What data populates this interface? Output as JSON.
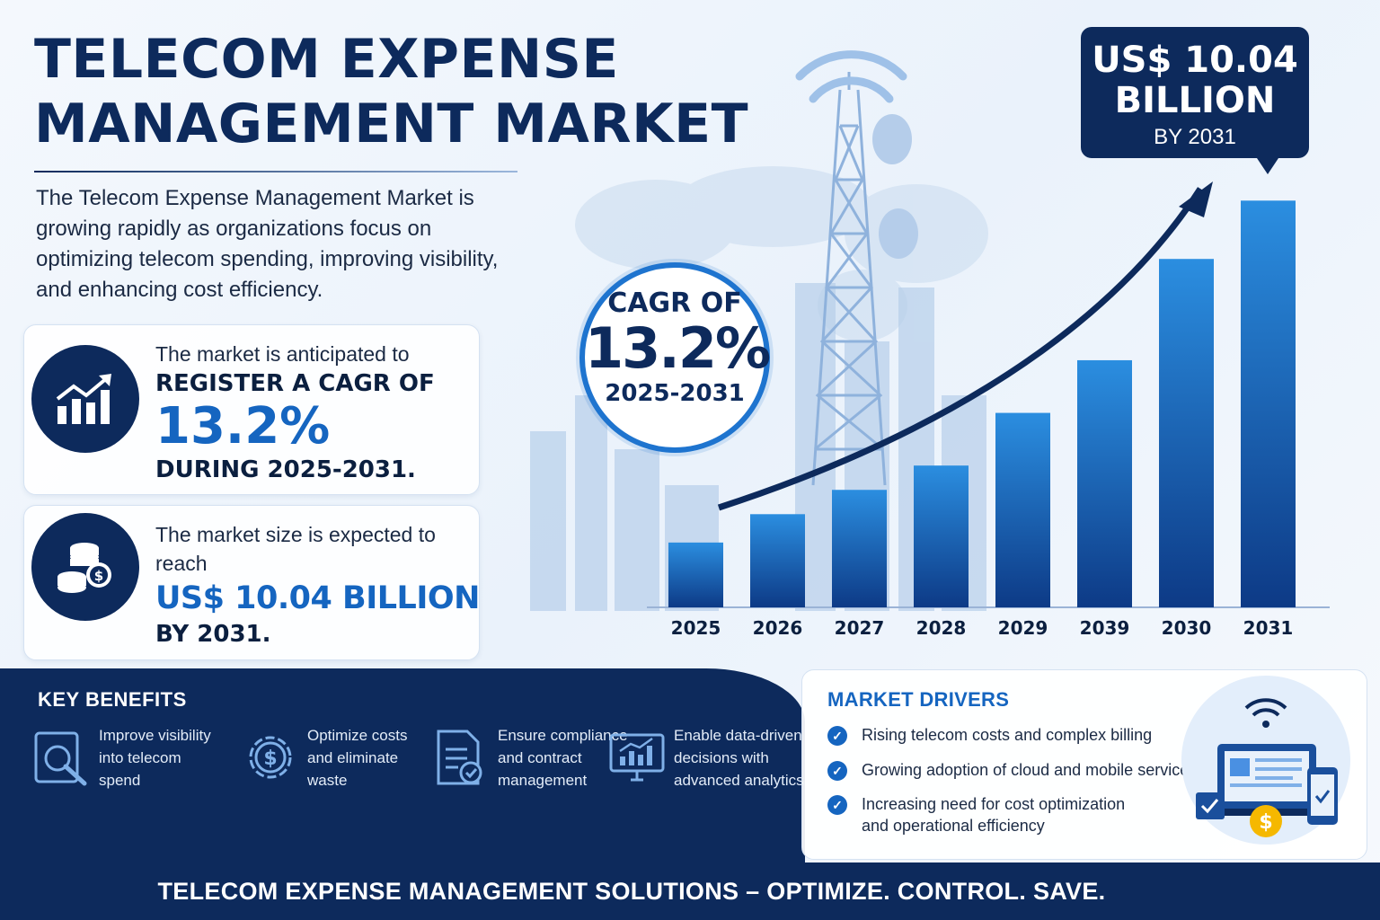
{
  "header": {
    "title_line1": "TELECOM EXPENSE",
    "title_line2": "MANAGEMENT MARKET",
    "intro": "The Telecom Expense Management Market is growing rapidly as organizations focus on optimizing telecom spending, improving visibility, and enhancing cost efficiency."
  },
  "stats": {
    "cagr_card": {
      "icon": "growth-chart-icon",
      "line1": "The market is anticipated to",
      "line2": "REGISTER A CAGR OF",
      "value": "13.2%",
      "line3": "DURING 2025-2031."
    },
    "size_card": {
      "icon": "coins-icon",
      "line1": "The market size is expected to reach",
      "value": "US$ 10.04 BILLION",
      "line2": "BY 2031."
    }
  },
  "cagr_badge": {
    "line1": "CAGR OF",
    "value": "13.2%",
    "period": "2025-2031"
  },
  "callout": {
    "line1": "US$ 10.04",
    "line2": "BILLION",
    "line3": "BY 2031"
  },
  "chart_data": {
    "type": "bar",
    "categories": [
      "2025",
      "2026",
      "2027",
      "2028",
      "2029",
      "2039",
      "2030",
      "2031"
    ],
    "values": [
      1.6,
      2.3,
      2.9,
      3.5,
      4.8,
      6.1,
      8.6,
      10.04
    ],
    "ylim": [
      0,
      11
    ],
    "grid": false,
    "trend_arrow": true,
    "colors": {
      "bar_light": "#2b8ee0",
      "bar_dark": "#0d3a86",
      "arrow": "#0d2a5c"
    }
  },
  "benefits": {
    "title": "KEY BENEFITS",
    "items": [
      {
        "icon": "search-report-icon",
        "text": "Improve visibility into telecom spend"
      },
      {
        "icon": "dollar-gear-icon",
        "text": "Optimize costs and eliminate waste"
      },
      {
        "icon": "document-check-icon",
        "text": "Ensure compliance and contract management"
      },
      {
        "icon": "analytics-monitor-icon",
        "text": "Enable data-driven decisions with advanced analytics"
      }
    ]
  },
  "drivers": {
    "title": "MARKET DRIVERS",
    "items": [
      {
        "text": "Rising telecom costs and complex billing"
      },
      {
        "text": "Growing adoption of cloud and mobile services"
      },
      {
        "text": "Increasing need for cost optimization and operational efficiency"
      }
    ]
  },
  "footer": {
    "text": "TELECOM EXPENSE MANAGEMENT SOLUTIONS – OPTIMIZE. CONTROL. SAVE."
  },
  "colors": {
    "navy": "#0d2a5c",
    "accent_blue": "#1565c0",
    "ring_blue": "#1e74cf"
  }
}
